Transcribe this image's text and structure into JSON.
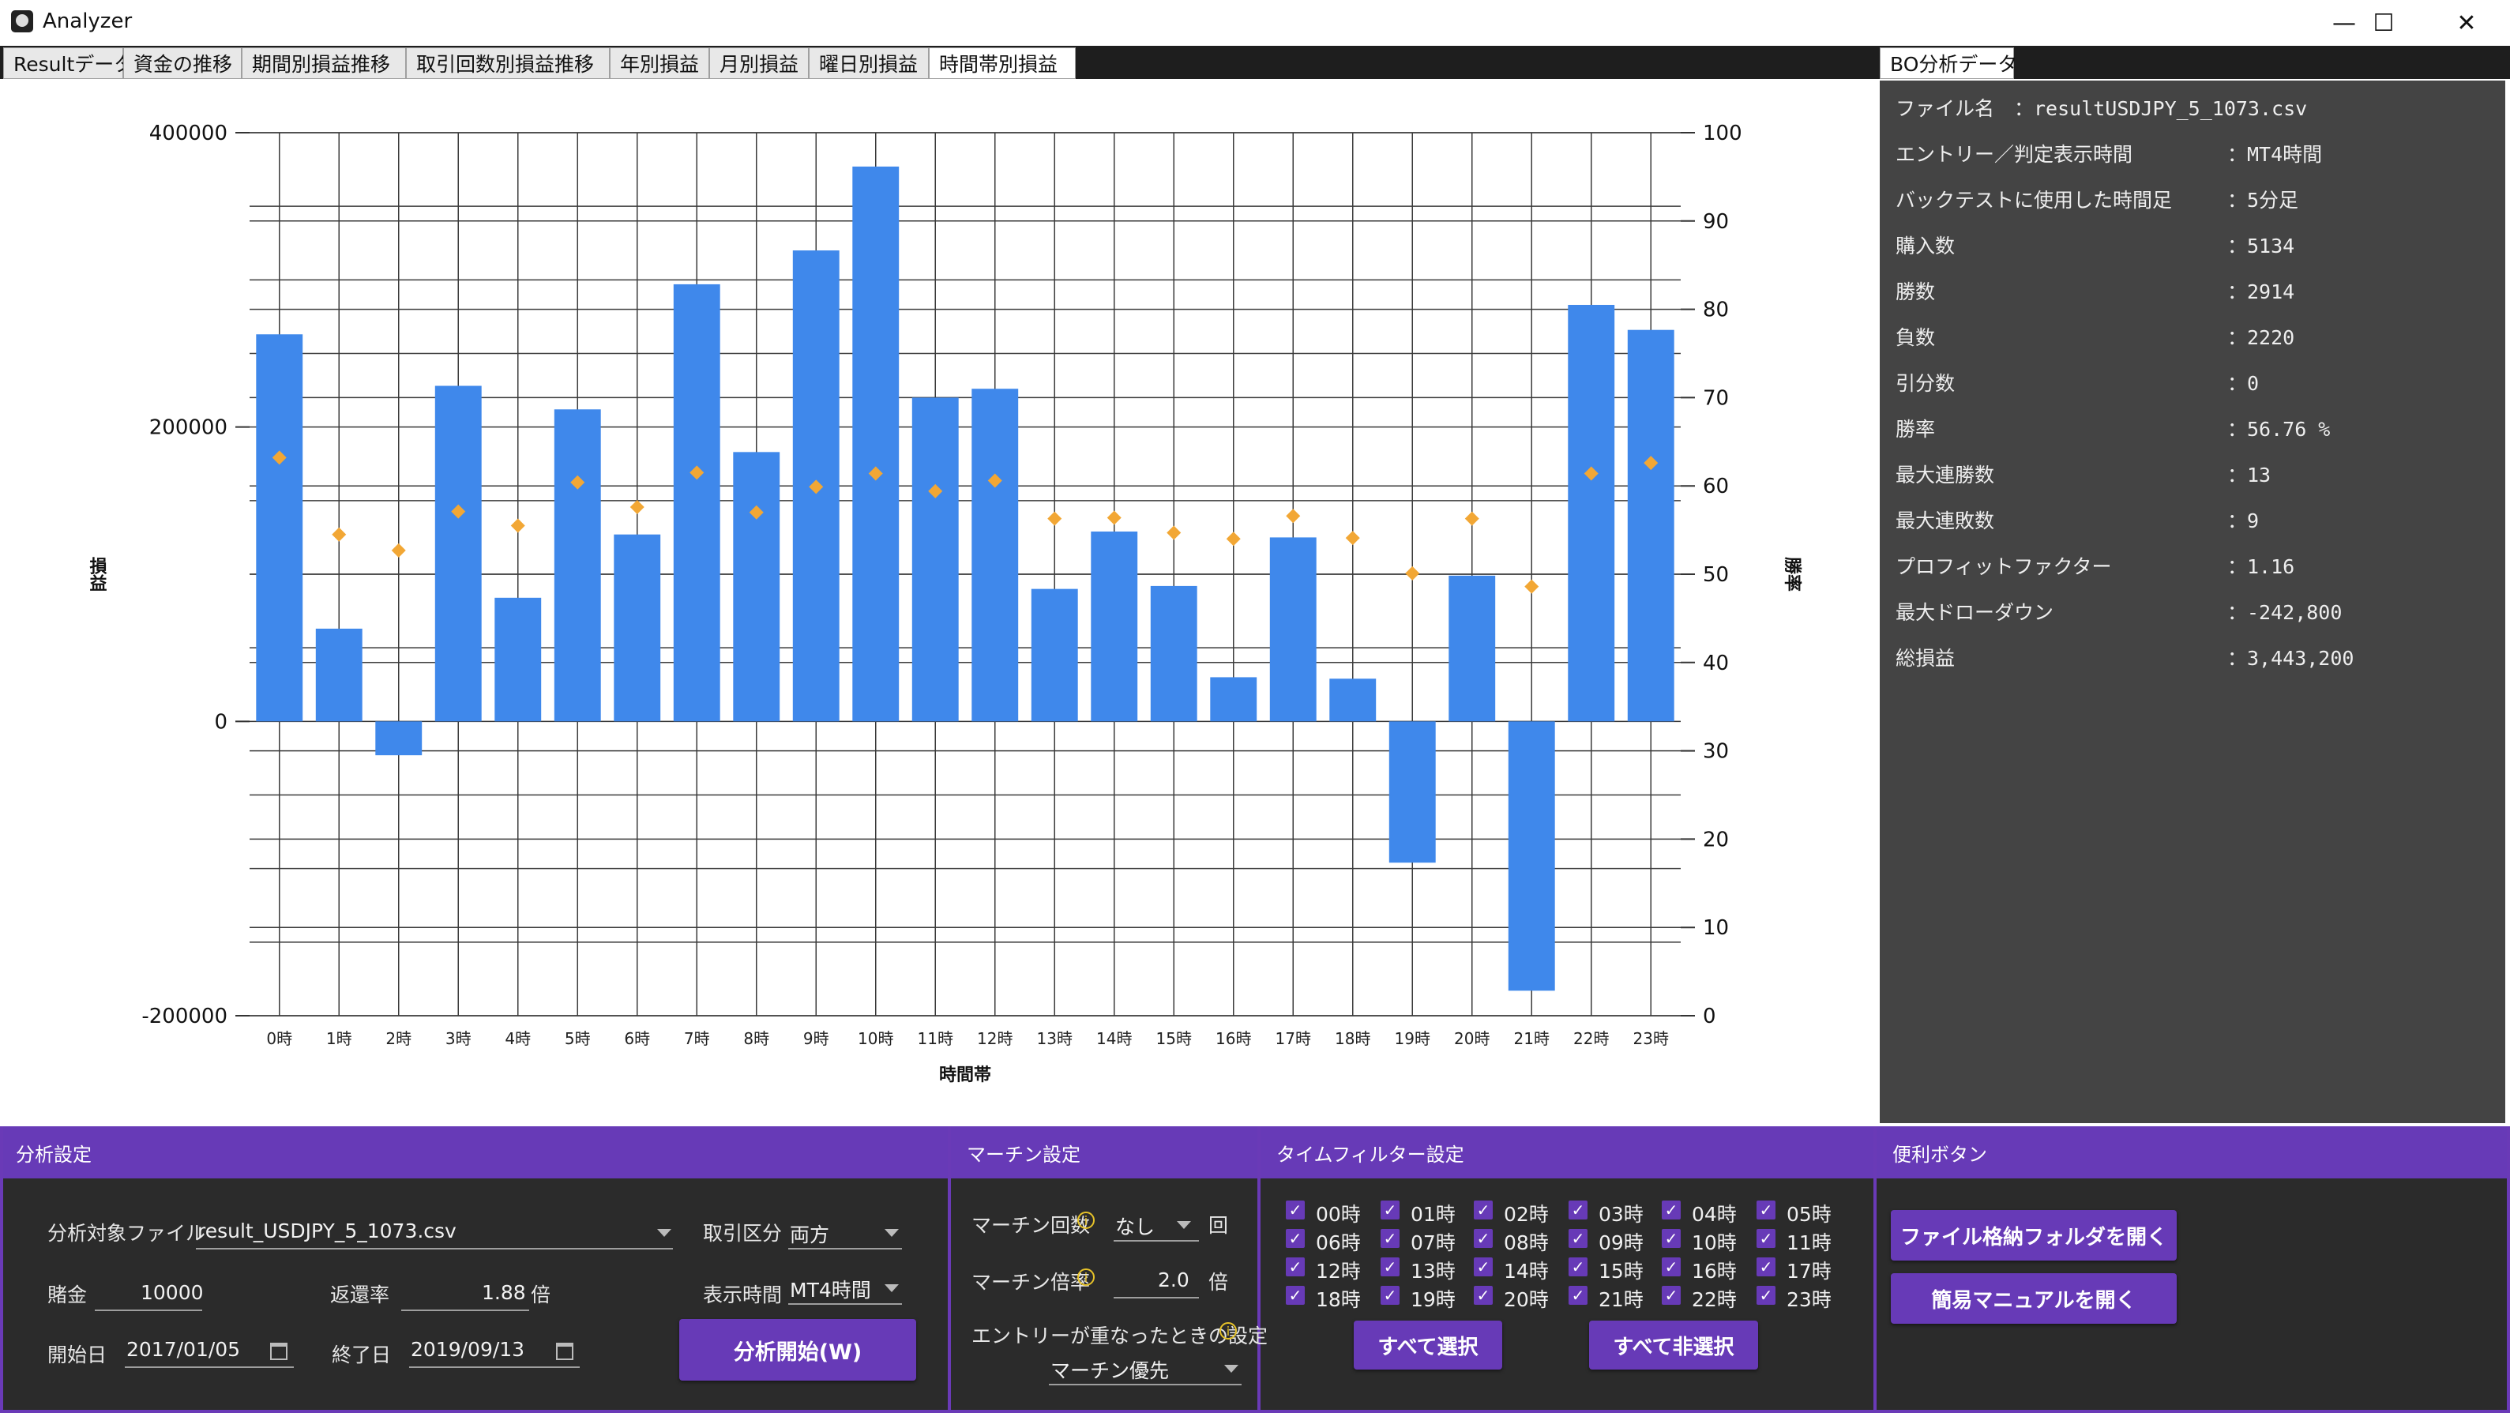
{
  "window": {
    "title": "Analyzer",
    "controls": {
      "minimize": "—",
      "maximize": "☐",
      "close": "✕"
    }
  },
  "tabs": [
    "Resultデータ",
    "資金の推移",
    "期間別損益推移",
    "取引回数別損益推移",
    "年別損益",
    "月別損益",
    "曜日別損益",
    "時間帯別損益"
  ],
  "active_tab": "時間帯別損益",
  "chart_data": {
    "type": "bar",
    "title": "",
    "xlabel": "時間帯",
    "ylabel": "損益",
    "y2label": "勝率",
    "ylim": [
      -200000,
      400000
    ],
    "y2lim": [
      0,
      100
    ],
    "yticks": [
      "400000",
      "200000",
      "0",
      "-200000"
    ],
    "y2ticks": [
      "100",
      "90",
      "80",
      "70",
      "60",
      "50",
      "40",
      "30",
      "20",
      "10",
      "0"
    ],
    "grid": true,
    "categories": [
      "0時",
      "1時",
      "2時",
      "3時",
      "4時",
      "5時",
      "6時",
      "7時",
      "8時",
      "9時",
      "10時",
      "11時",
      "12時",
      "13時",
      "14時",
      "15時",
      "16時",
      "17時",
      "18時",
      "19時",
      "20時",
      "21時",
      "22時",
      "23時"
    ],
    "series": [
      {
        "axis": "left",
        "kind": "bar",
        "color": "#3f88eb",
        "values": [
          263000,
          63000,
          -23000,
          228000,
          84000,
          212000,
          127000,
          297000,
          183000,
          320000,
          377000,
          220000,
          226000,
          90000,
          129000,
          92000,
          30000,
          125000,
          29000,
          -96000,
          99000,
          -183000,
          283000,
          266000
        ]
      },
      {
        "axis": "right",
        "kind": "marker",
        "color": "#f2a735",
        "values": [
          63.2,
          54.5,
          52.7,
          57.1,
          55.5,
          60.4,
          57.6,
          61.5,
          57.0,
          59.9,
          61.4,
          59.4,
          60.6,
          56.3,
          56.4,
          54.7,
          54.0,
          56.6,
          54.1,
          50.1,
          56.3,
          48.6,
          61.4,
          62.6
        ]
      }
    ]
  },
  "right_panel": {
    "tab": "BO分析データ",
    "rows": [
      {
        "label": "ファイル名",
        "value": "：resultUSDJPY_5_1073.csv"
      },
      {
        "label": "エントリー／判定表示時間",
        "value": "：MT4時間"
      },
      {
        "label": "バックテストに使用した時間足",
        "value": "：5分足"
      },
      {
        "label": "購入数",
        "value": "：5134"
      },
      {
        "label": "勝数",
        "value": "：2914"
      },
      {
        "label": "負数",
        "value": "：2220"
      },
      {
        "label": "引分数",
        "value": "：0"
      },
      {
        "label": "勝率",
        "value": "：56.76 %"
      },
      {
        "label": "最大連勝数",
        "value": "：13"
      },
      {
        "label": "最大連敗数",
        "value": "：9"
      },
      {
        "label": "プロフィットファクター",
        "value": "：1.16"
      },
      {
        "label": "最大ドローダウン",
        "value": "：-242,800"
      },
      {
        "label": "総損益",
        "value": "：3,443,200"
      }
    ]
  },
  "analysis": {
    "header": "分析設定",
    "file_label": "分析対象ファイル",
    "file_value": "result_USDJPY_5_1073.csv",
    "trade_type_label": "取引区分",
    "trade_type_value": "両方",
    "bet_label": "賭金",
    "bet_value": "10000",
    "payout_label": "返還率",
    "payout_value": "1.88",
    "payout_unit": "倍",
    "display_time_label": "表示時間",
    "display_time_value": "MT4時間",
    "start_label": "開始日",
    "start_value": "2017/01/05",
    "end_label": "終了日",
    "end_value": "2019/09/13",
    "run_button": "分析開始(W)"
  },
  "martin": {
    "header": "マーチン設定",
    "count_label": "マーチン回数",
    "count_value": "なし",
    "count_unit": "回",
    "rate_label": "マーチン倍率",
    "rate_value": "2.0",
    "rate_unit": "倍",
    "overlap_label": "エントリーが重なったときの設定",
    "overlap_value": "マーチン優先"
  },
  "timefilter": {
    "header": "タイムフィルター設定",
    "hours": [
      "00時",
      "01時",
      "02時",
      "03時",
      "04時",
      "05時",
      "06時",
      "07時",
      "08時",
      "09時",
      "10時",
      "11時",
      "12時",
      "13時",
      "14時",
      "15時",
      "16時",
      "17時",
      "18時",
      "19時",
      "20時",
      "21時",
      "22時",
      "23時"
    ],
    "select_all": "すべて選択",
    "deselect_all": "すべて非選択"
  },
  "utility": {
    "header": "便利ボタン",
    "open_folder": "ファイル格納フォルダを開く",
    "open_manual": "簡易マニュアルを開く"
  }
}
